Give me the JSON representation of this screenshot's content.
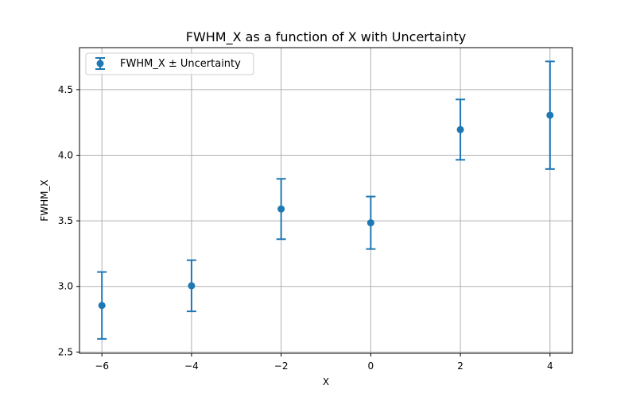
{
  "chart_data": {
    "type": "scatter",
    "title": "FWHM_X as a function of X with Uncertainty",
    "xlabel": "X",
    "ylabel": "FWHM_X",
    "xlim": [
      -6.5,
      4.5
    ],
    "ylim": [
      2.49,
      4.82
    ],
    "xticks": [
      -6,
      -4,
      -2,
      0,
      2,
      4
    ],
    "xtick_labels": [
      "−6",
      "−4",
      "−2",
      "0",
      "2",
      "4"
    ],
    "yticks": [
      2.5,
      3.0,
      3.5,
      4.0,
      4.5
    ],
    "ytick_labels": [
      "2.5",
      "3.0",
      "3.5",
      "4.0",
      "4.5"
    ],
    "grid": true,
    "legend_position": "upper-left",
    "series": [
      {
        "name": "FWHM_X ± Uncertainty",
        "color": "#1f77b4",
        "x": [
          -6,
          -4,
          -2,
          0,
          2,
          4
        ],
        "y": [
          2.855,
          3.005,
          3.59,
          3.485,
          4.195,
          4.305
        ],
        "yerr": [
          0.255,
          0.195,
          0.23,
          0.2,
          0.23,
          0.41
        ]
      }
    ]
  }
}
